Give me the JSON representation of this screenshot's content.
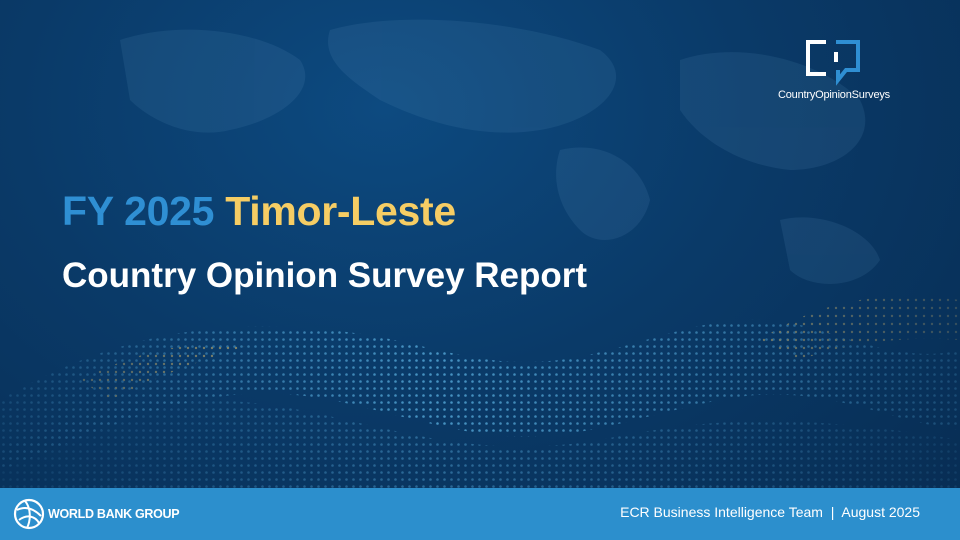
{
  "logo": {
    "text": "CountryOpinionSurveys"
  },
  "title": {
    "prefix": "FY 2025",
    "country": "Timor-Leste"
  },
  "subtitle": "Country Opinion Survey Report",
  "footer": {
    "organization": "WORLD BANK GROUP",
    "credit": "ECR Business Intelligence Team  |  August 2025"
  }
}
